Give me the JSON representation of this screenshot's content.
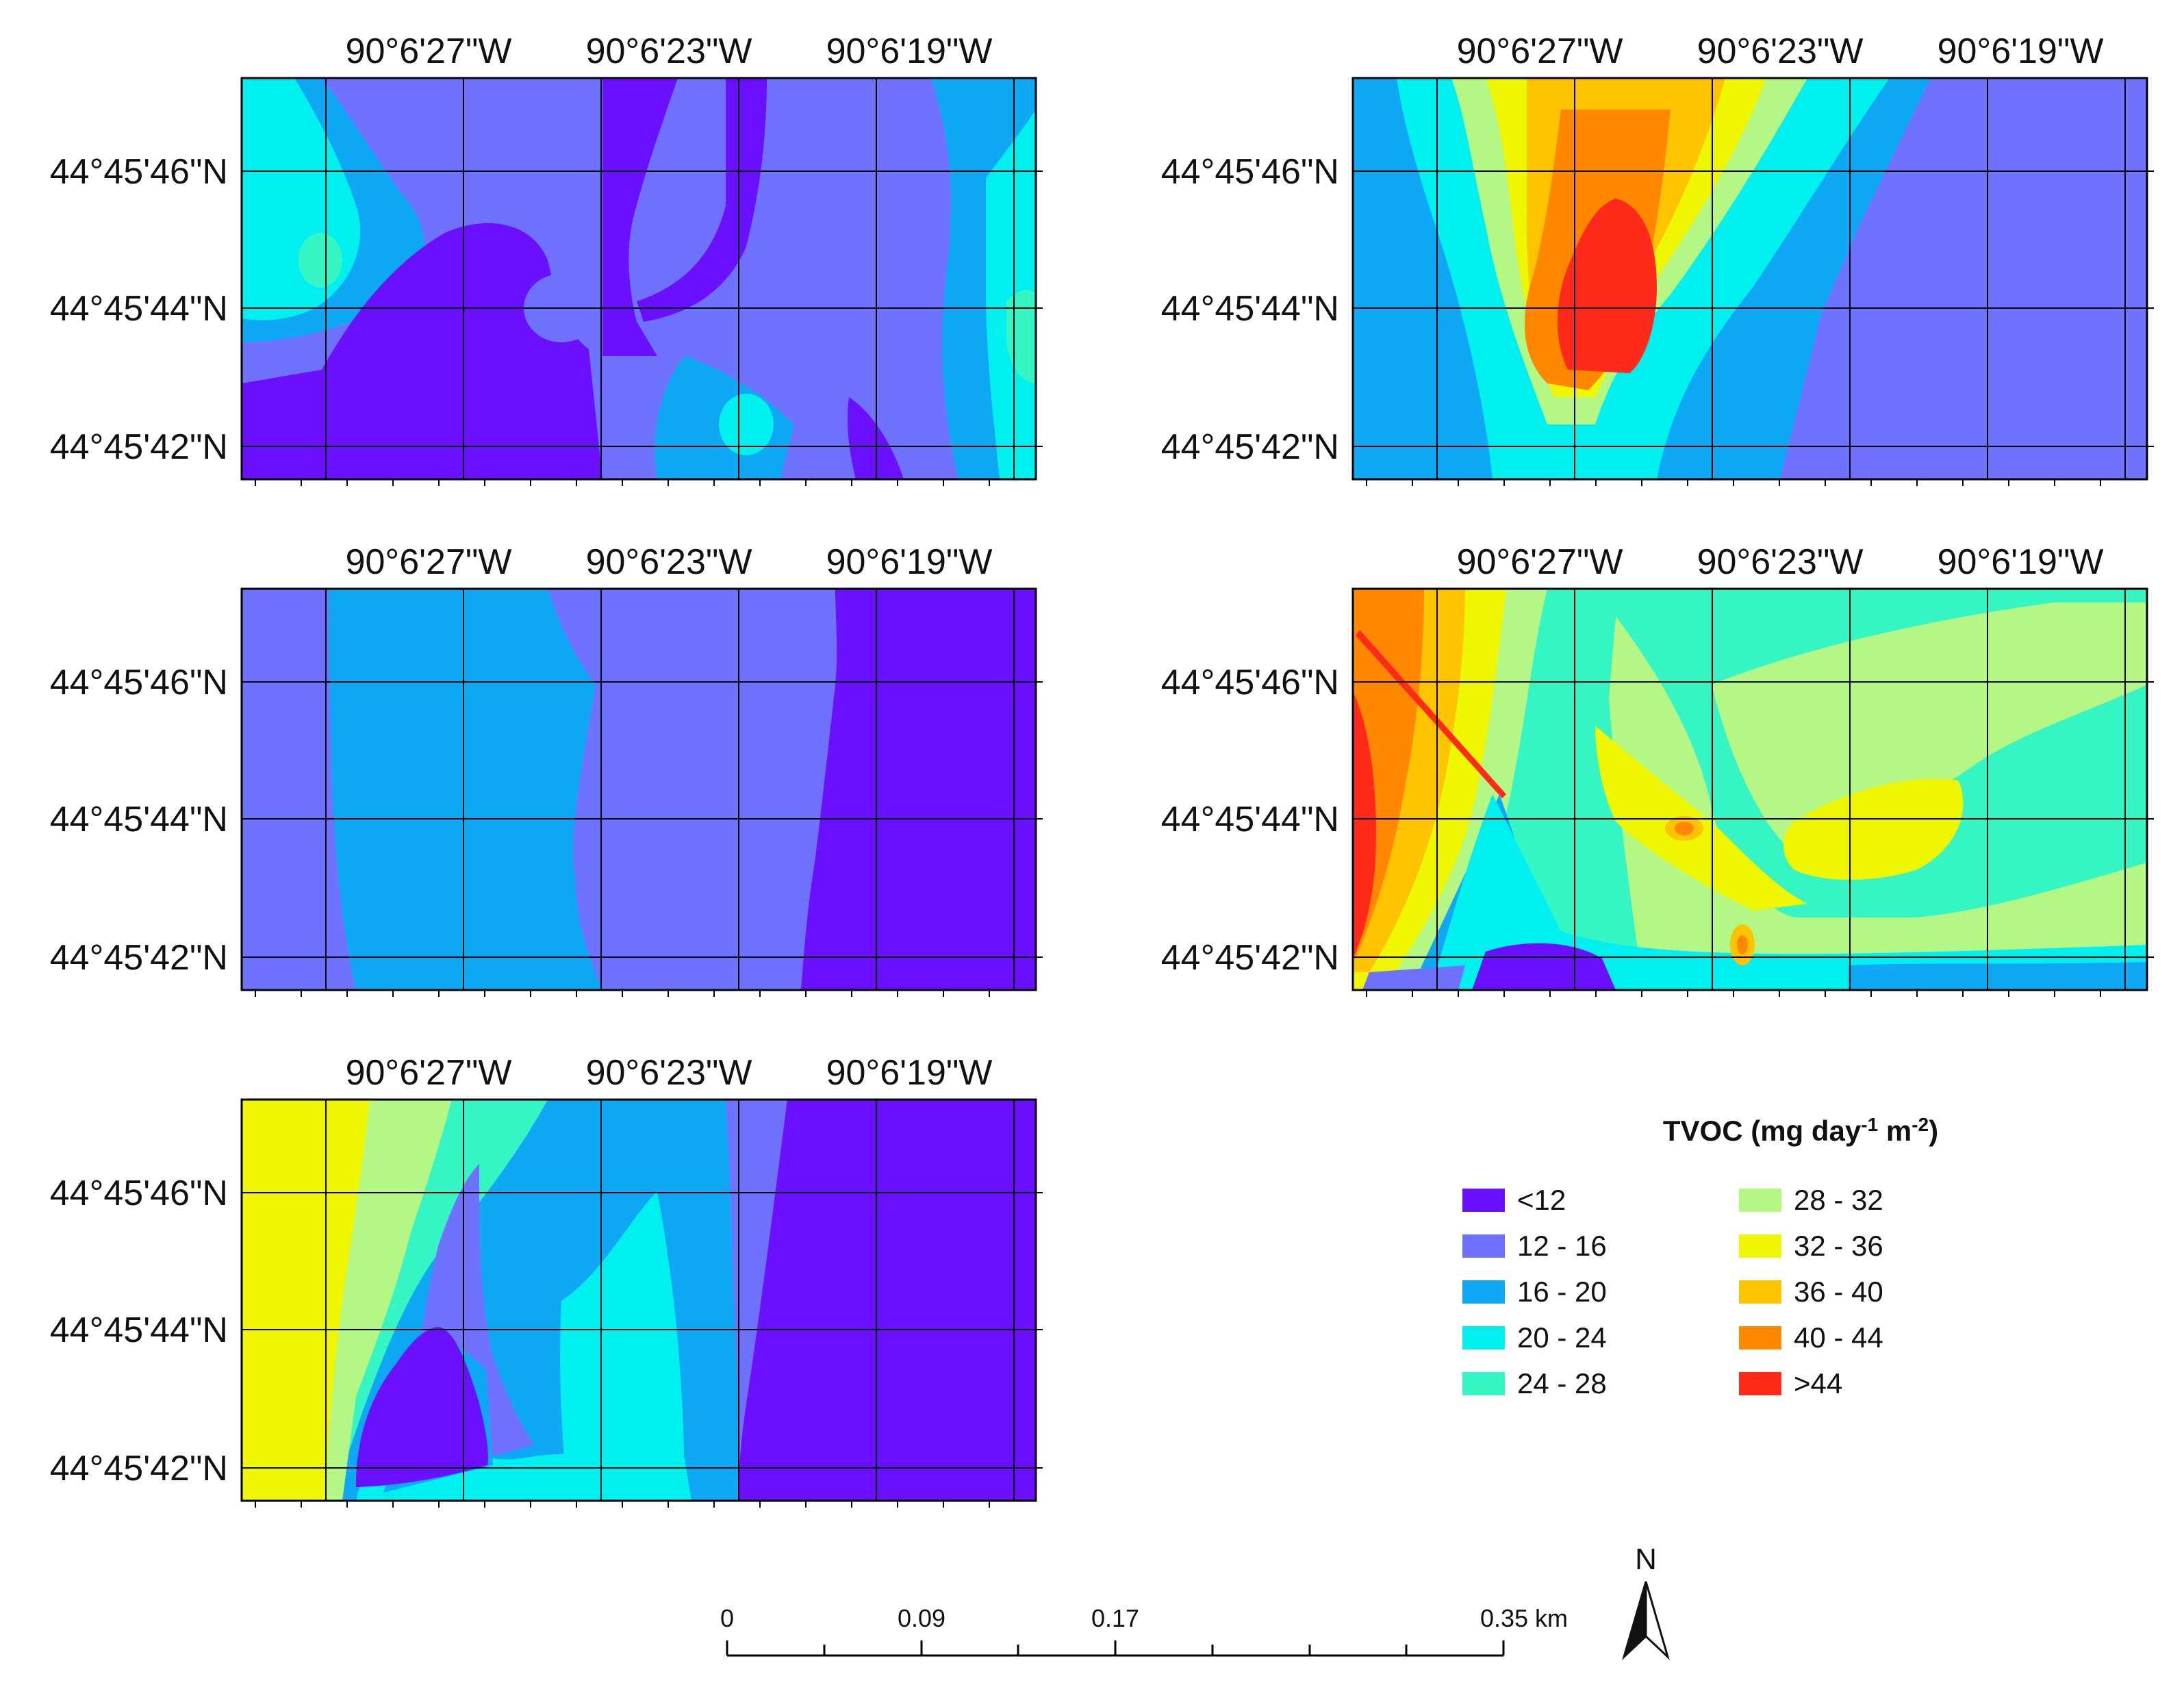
{
  "figure": {
    "longitude_labels": [
      "90°6'27\"W",
      "90°6'23\"W",
      "90°6'19\"W"
    ],
    "latitude_labels": [
      "44°45'46\"N",
      "44°45'44\"N",
      "44°45'42\"N"
    ],
    "panel_count": 5
  },
  "legend": {
    "title_main": "TVOC (mg day",
    "title_exp1": "-1",
    "title_mid": " m",
    "title_exp2": "-2",
    "title_end": ")",
    "classes": [
      {
        "label": "<12",
        "color": "#6a10ff"
      },
      {
        "label": "12 - 16",
        "color": "#6f72ff"
      },
      {
        "label": "16 - 20",
        "color": "#0fa8f5"
      },
      {
        "label": "20 - 24",
        "color": "#00f0f0"
      },
      {
        "label": "24 - 28",
        "color": "#36f5c4"
      },
      {
        "label": "28 - 32",
        "color": "#b4f784"
      },
      {
        "label": "32 - 36",
        "color": "#eef700"
      },
      {
        "label": "36 - 40",
        "color": "#ffc400"
      },
      {
        "label": "40 - 44",
        "color": "#ff8800"
      },
      {
        "label": ">44",
        "color": "#ff2a1a"
      }
    ]
  },
  "scale_bar": {
    "ticks": [
      "0",
      "0.09",
      "0.17",
      "0.35 km"
    ]
  },
  "north_arrow": {
    "label": "N"
  }
}
